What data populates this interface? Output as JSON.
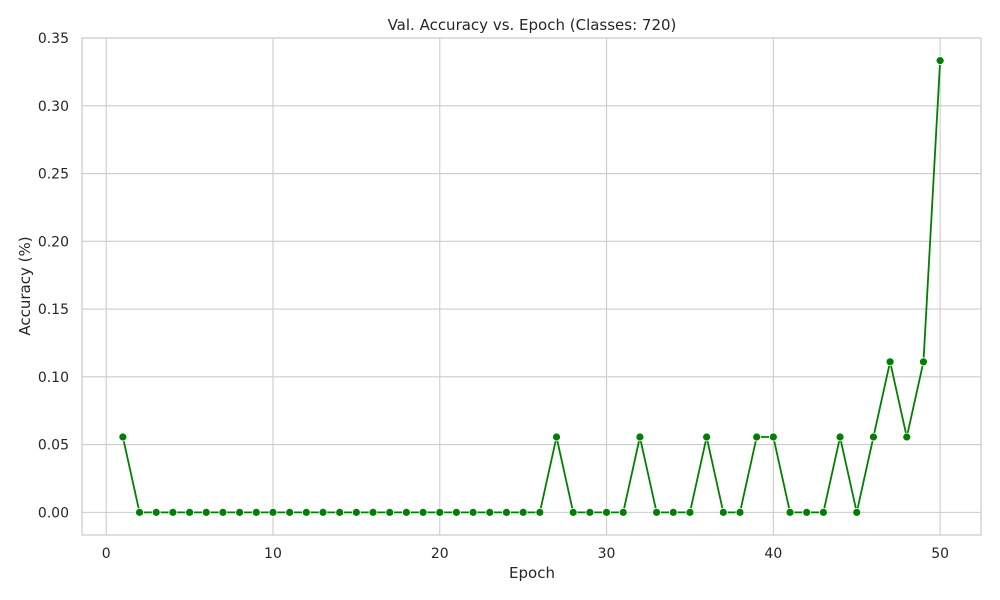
{
  "chart_data": {
    "type": "line",
    "title": "Val. Accuracy vs. Epoch (Classes: 720)",
    "xlabel": "Epoch",
    "ylabel": "Accuracy (%)",
    "xlim": [
      -1.45,
      52.45
    ],
    "ylim": [
      -0.0167,
      0.35
    ],
    "xticks": [
      0,
      10,
      20,
      30,
      40,
      50
    ],
    "xtick_labels": [
      "0",
      "10",
      "20",
      "30",
      "40",
      "50"
    ],
    "yticks": [
      0.0,
      0.05,
      0.1,
      0.15,
      0.2,
      0.25,
      0.3,
      0.35
    ],
    "ytick_labels": [
      "0.00",
      "0.05",
      "0.10",
      "0.15",
      "0.20",
      "0.25",
      "0.30",
      "0.35"
    ],
    "grid": true,
    "series": [
      {
        "color": "#008000",
        "marker": "circle",
        "x": [
          1,
          2,
          3,
          4,
          5,
          6,
          7,
          8,
          9,
          10,
          11,
          12,
          13,
          14,
          15,
          16,
          17,
          18,
          19,
          20,
          21,
          22,
          23,
          24,
          25,
          26,
          27,
          28,
          29,
          30,
          31,
          32,
          33,
          34,
          35,
          36,
          37,
          38,
          39,
          40,
          41,
          42,
          43,
          44,
          45,
          46,
          47,
          48,
          49,
          50
        ],
        "y": [
          0.0556,
          0,
          0,
          0,
          0,
          0,
          0,
          0,
          0,
          0,
          0,
          0,
          0,
          0,
          0,
          0,
          0,
          0,
          0,
          0,
          0,
          0,
          0,
          0,
          0,
          0,
          0.0556,
          0,
          0,
          0,
          0,
          0.0556,
          0,
          0,
          0,
          0.0556,
          0,
          0,
          0.0556,
          0.0556,
          0,
          0,
          0,
          0.0556,
          0,
          0.0556,
          0.1111,
          0.0556,
          0.1111,
          0.3333
        ]
      }
    ]
  }
}
